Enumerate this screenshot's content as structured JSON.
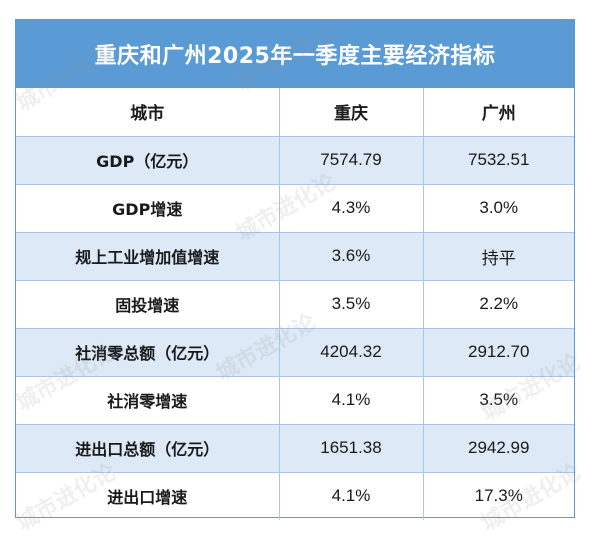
{
  "title": "重庆和广州2025年一季度主要经济指标",
  "columns": [
    "城市",
    "重庆",
    "广州"
  ],
  "rows": [
    {
      "label": "GDP（亿元）",
      "v1": "7574.79",
      "v2": "7532.51"
    },
    {
      "label": "GDP增速",
      "v1": "4.3%",
      "v2": "3.0%"
    },
    {
      "label": "规上工业增加值增速",
      "v1": "3.6%",
      "v2": "持平"
    },
    {
      "label": "固投增速",
      "v1": "3.5%",
      "v2": "2.2%"
    },
    {
      "label": "社消零总额（亿元）",
      "v1": "4204.32",
      "v2": "2912.70"
    },
    {
      "label": "社消零增速",
      "v1": "4.1%",
      "v2": "3.5%"
    },
    {
      "label": "进出口总额（亿元）",
      "v1": "1651.38",
      "v2": "2942.99"
    },
    {
      "label": "进出口增速",
      "v1": "4.1%",
      "v2": "17.3%"
    }
  ],
  "watermark_text": "城市进化论",
  "colors": {
    "header": "#5b9bd5",
    "shaded_row": "#dde9f6",
    "border": "#a9c6e6"
  }
}
